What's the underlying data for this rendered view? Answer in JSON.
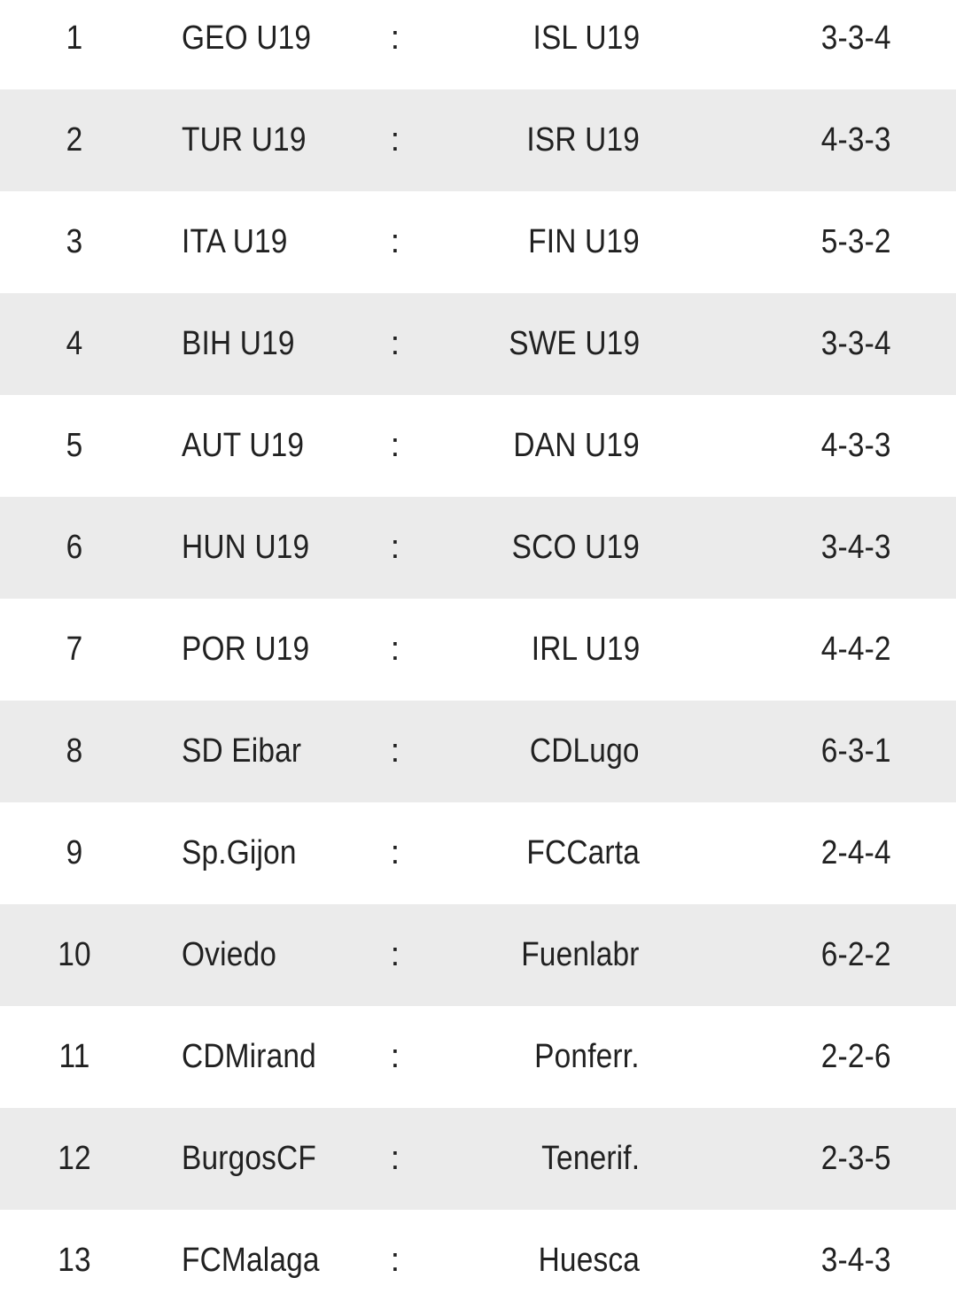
{
  "separator": ":",
  "matches": [
    {
      "num": "1",
      "home": "GEO U19",
      "away": "ISL U19",
      "score": "3-3-4"
    },
    {
      "num": "2",
      "home": "TUR U19",
      "away": "ISR U19",
      "score": "4-3-3"
    },
    {
      "num": "3",
      "home": "ITA U19",
      "away": "FIN U19",
      "score": "5-3-2"
    },
    {
      "num": "4",
      "home": "BIH U19",
      "away": "SWE U19",
      "score": "3-3-4"
    },
    {
      "num": "5",
      "home": "AUT U19",
      "away": "DAN U19",
      "score": "4-3-3"
    },
    {
      "num": "6",
      "home": "HUN U19",
      "away": "SCO U19",
      "score": "3-4-3"
    },
    {
      "num": "7",
      "home": "POR U19",
      "away": "IRL U19",
      "score": "4-4-2"
    },
    {
      "num": "8",
      "home": "SD Eibar",
      "away": "CDLugo",
      "score": "6-3-1"
    },
    {
      "num": "9",
      "home": "Sp.Gijon",
      "away": "FCCarta",
      "score": "2-4-4"
    },
    {
      "num": "10",
      "home": "Oviedo",
      "away": "Fuenlabr",
      "score": "6-2-2"
    },
    {
      "num": "11",
      "home": "CDMirand",
      "away": "Ponferr.",
      "score": "2-2-6"
    },
    {
      "num": "12",
      "home": "BurgosCF",
      "away": "Tenerif.",
      "score": "2-3-5"
    },
    {
      "num": "13",
      "home": "FCMalaga",
      "away": "Huesca",
      "score": "3-4-3"
    }
  ],
  "colors": {
    "row_light": "#ffffff",
    "row_shaded": "#ebebeb",
    "text": "#212121"
  }
}
